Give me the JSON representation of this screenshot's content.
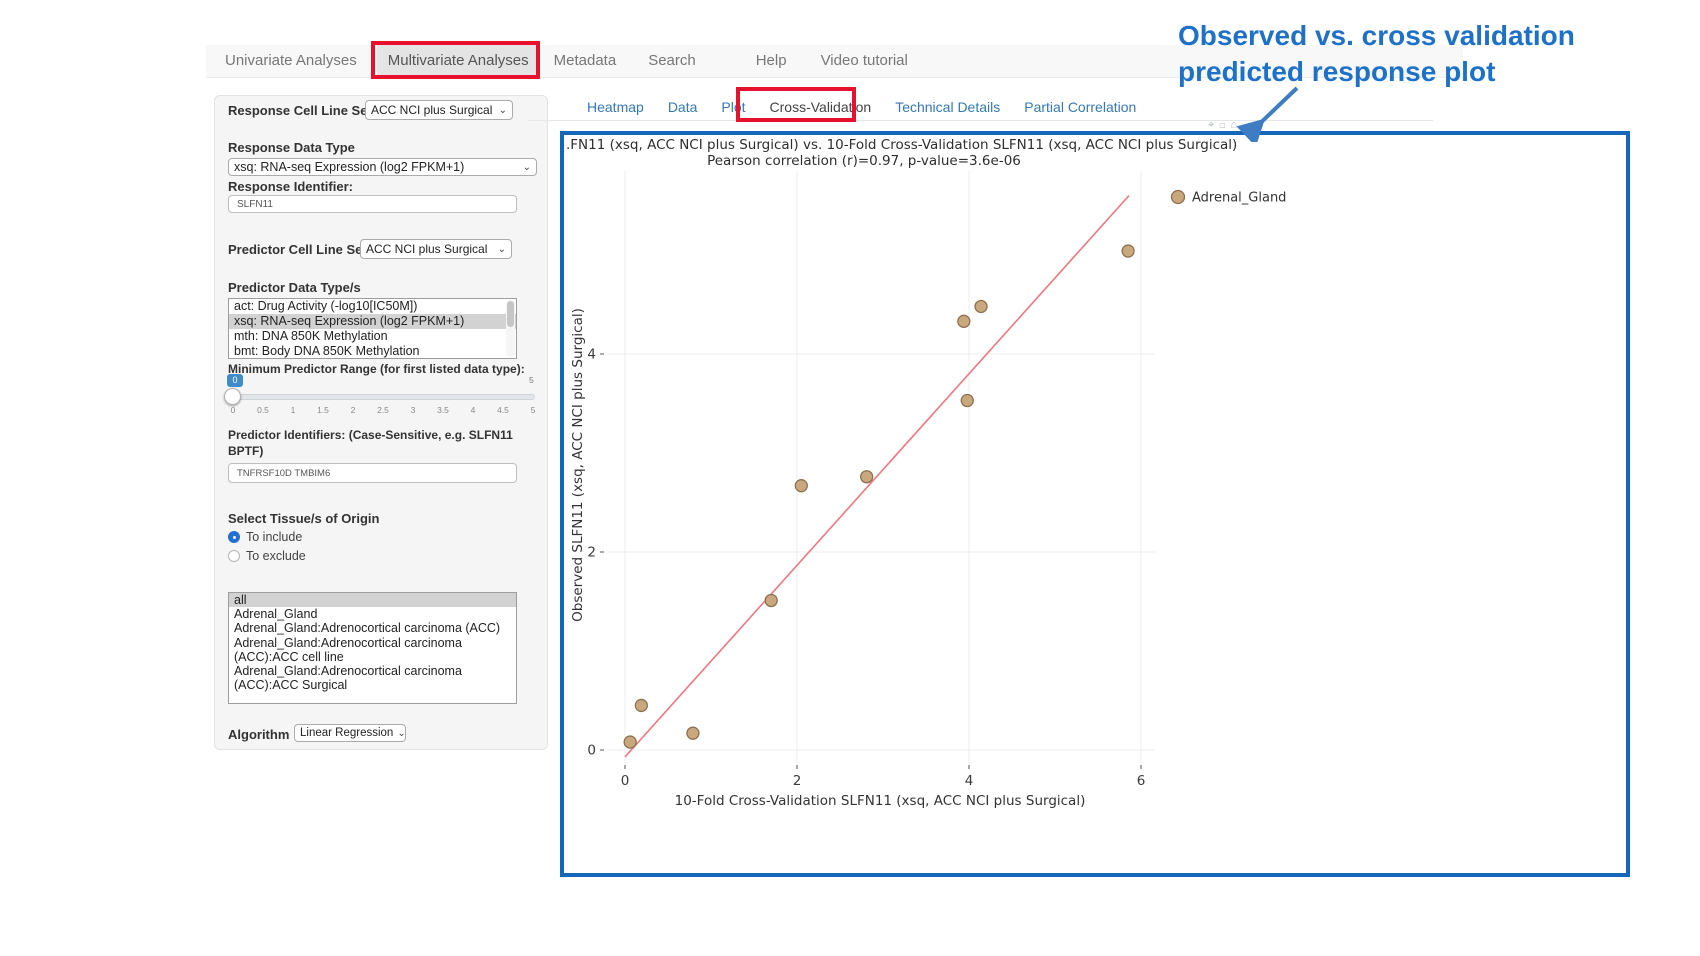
{
  "nav": {
    "items": [
      {
        "label": "Univariate Analyses",
        "active": false
      },
      {
        "label": "Multivariate Analyses",
        "active": true
      },
      {
        "label": "Metadata",
        "active": false
      },
      {
        "label": "Search",
        "active": false
      },
      {
        "label": "Help",
        "active": false
      },
      {
        "label": "Video tutorial",
        "active": false
      }
    ]
  },
  "sidebar": {
    "response_cell_line_set": {
      "label": "Response Cell Line Set",
      "value": "ACC NCI plus Surgical"
    },
    "response_data_type": {
      "label": "Response Data Type",
      "value": "xsq: RNA-seq Expression (log2 FPKM+1)"
    },
    "response_identifier": {
      "label": "Response Identifier:",
      "value": "SLFN11"
    },
    "predictor_cell_line_set": {
      "label": "Predictor Cell Line Set",
      "value": "ACC NCI plus Surgical"
    },
    "predictor_data_types": {
      "label": "Predictor Data Type/s",
      "options": [
        {
          "label": "act: Drug Activity (-log10[IC50M])",
          "selected": false
        },
        {
          "label": "xsq: RNA-seq Expression (log2 FPKM+1)",
          "selected": true
        },
        {
          "label": "mth: DNA 850K Methylation",
          "selected": false
        },
        {
          "label": "bmt: Body DNA 850K Methylation",
          "selected": false
        }
      ]
    },
    "min_predictor_range": {
      "label": "Minimum Predictor Range (for first listed data type):",
      "value": "0",
      "max": "5",
      "ticks": [
        "0",
        "0.5",
        "1",
        "1.5",
        "2",
        "2.5",
        "3",
        "3.5",
        "4",
        "4.5",
        "5"
      ]
    },
    "predictor_identifiers": {
      "label_line1": "Predictor Identifiers: (Case-Sensitive, e.g. SLFN11",
      "label_line2": "BPTF)",
      "value": "TNFRSF10D TMBIM6"
    },
    "tissue": {
      "label": "Select Tissue/s of Origin",
      "include_label": "To include",
      "exclude_label": "To exclude",
      "options": [
        {
          "label": "all",
          "selected": true
        },
        {
          "label": "Adrenal_Gland",
          "selected": false
        },
        {
          "label": "Adrenal_Gland:Adrenocortical carcinoma (ACC)",
          "selected": false
        },
        {
          "label": "Adrenal_Gland:Adrenocortical carcinoma (ACC):ACC cell line",
          "selected": false
        },
        {
          "label": "Adrenal_Gland:Adrenocortical carcinoma (ACC):ACC Surgical",
          "selected": false
        }
      ]
    },
    "algorithm": {
      "label": "Algorithm",
      "value": "Linear Regression"
    }
  },
  "tabs": {
    "items": [
      {
        "label": "Heatmap",
        "active": false
      },
      {
        "label": "Data",
        "active": false
      },
      {
        "label": "Plot",
        "active": false
      },
      {
        "label": "Cross-Validation",
        "active": true
      },
      {
        "label": "Technical Details",
        "active": false
      },
      {
        "label": "Partial Correlation",
        "active": false
      }
    ]
  },
  "chart_data": {
    "type": "scatter",
    "title_visible": ".FN11 (xsq, ACC NCI plus Surgical) vs. 10-Fold Cross-Validation SLFN11 (xsq, ACC NCI plus Surgical)",
    "subtitle": "Pearson correlation (r)=0.97, p-value=3.6e-06",
    "xlabel": "10-Fold Cross-Validation SLFN11 (xsq, ACC NCI plus Surgical)",
    "ylabel": "Observed SLFN11 (xsq, ACC NCI plus Surgical)",
    "xticks": [
      0,
      2,
      4,
      6
    ],
    "yticks": [
      0,
      2,
      4
    ],
    "xlim": [
      -0.25,
      6.15
    ],
    "ylim": [
      -0.2,
      5.85
    ],
    "grid": true,
    "legend_position": "right",
    "series": [
      {
        "name": "Adrenal_Gland",
        "marker_fill": "#c9a87e",
        "marker_stroke": "#8d7050",
        "points": [
          [
            0.06,
            0.08
          ],
          [
            0.19,
            0.45
          ],
          [
            0.79,
            0.17
          ],
          [
            1.7,
            1.51
          ],
          [
            2.05,
            2.67
          ],
          [
            2.81,
            2.76
          ],
          [
            3.94,
            4.33
          ],
          [
            3.98,
            3.53
          ],
          [
            4.14,
            4.48
          ],
          [
            5.85,
            5.04
          ]
        ]
      }
    ],
    "fit_line": {
      "x": [
        0.0,
        5.86
      ],
      "y": [
        -0.07,
        5.6
      ],
      "color": "#f4757d"
    }
  },
  "annotation": {
    "line1": "Observed vs. cross validation",
    "line2": "predicted response plot",
    "modebar_icons": [
      "⌖",
      "◻",
      "⌂"
    ]
  },
  "colors": {
    "box_blue": "#1467b8",
    "annotation_blue": "#1e71c8",
    "annotation_red": "#e8112d",
    "link_blue": "#337ab7",
    "point_fill": "#c9a87e",
    "point_stroke": "#8d7050",
    "fit_line": "#f4757d"
  }
}
